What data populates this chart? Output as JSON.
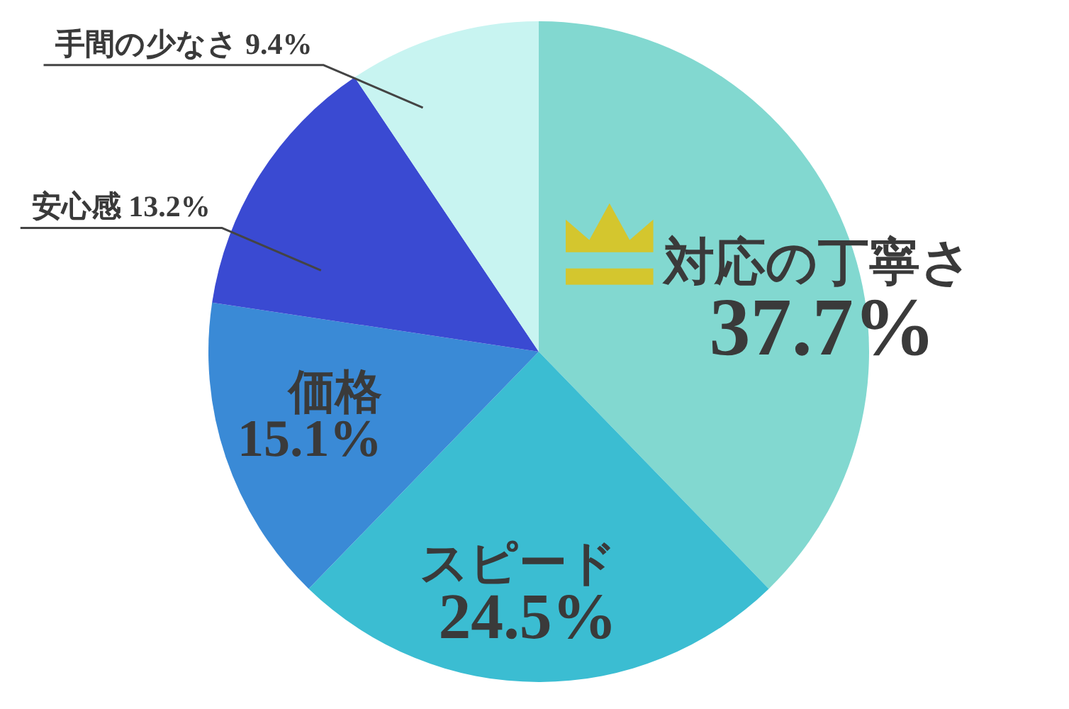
{
  "chart_data": {
    "type": "pie",
    "categories": [
      "対応の丁寧さ",
      "スピード",
      "価格",
      "安心感",
      "手間の少なさ"
    ],
    "values": [
      37.7,
      24.5,
      15.1,
      13.2,
      9.4
    ],
    "colors": [
      "#82d8d0",
      "#3bbdd2",
      "#3a8ad6",
      "#3a4ad2",
      "#c8f4f1"
    ],
    "value_labels": [
      "37.7%",
      "24.5%",
      "15.1%",
      "13.2%",
      "9.4%"
    ]
  }
}
